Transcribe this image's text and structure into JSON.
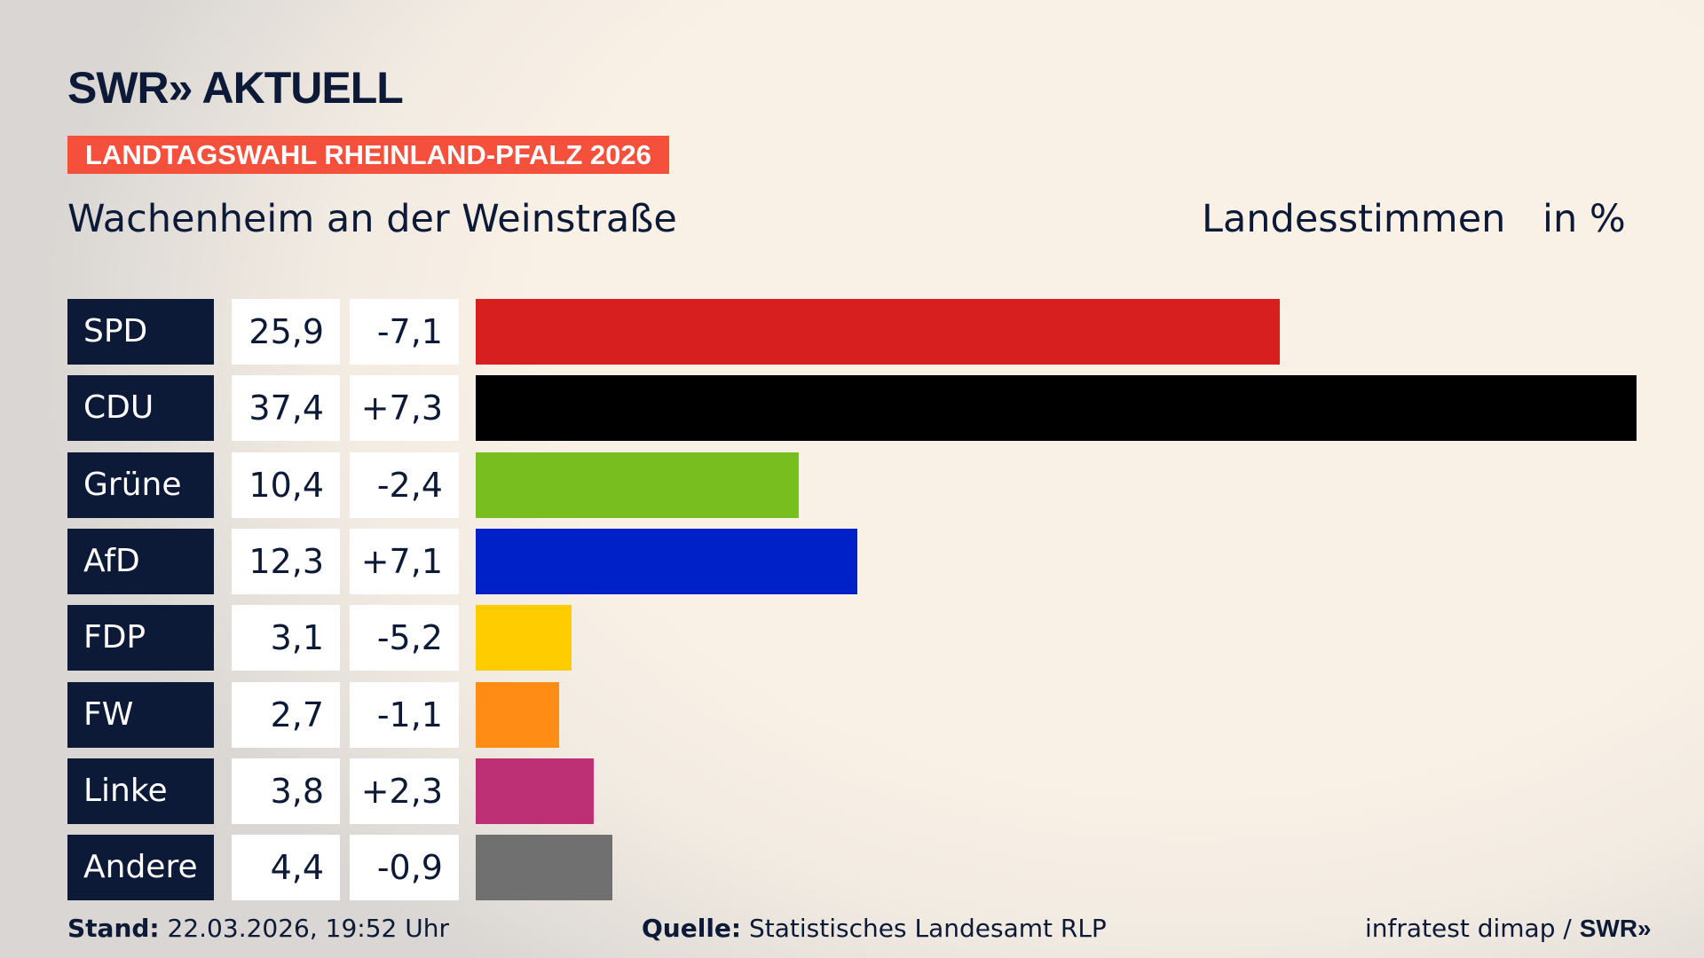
{
  "header": {
    "logo": "SWR» AKTUELL",
    "banner": "LANDTAGSWAHL RHEINLAND-PFALZ 2026",
    "subtitle": "Wachenheim an der Weinstraße",
    "measure": "Landesstimmen",
    "unit": "in %"
  },
  "chart_data": {
    "type": "bar",
    "orientation": "horizontal",
    "categories": [
      "SPD",
      "CDU",
      "Grüne",
      "AfD",
      "FDP",
      "FW",
      "Linke",
      "Andere"
    ],
    "values": [
      25.9,
      37.4,
      10.4,
      12.3,
      3.1,
      2.7,
      3.8,
      4.4
    ],
    "value_labels": [
      "25,9",
      "37,4",
      "10,4",
      "12,3",
      "3,1",
      "2,7",
      "3,8",
      "4,4"
    ],
    "changes": [
      -7.1,
      7.3,
      -2.4,
      7.1,
      -5.2,
      -1.1,
      2.3,
      -0.9
    ],
    "change_labels": [
      "-7,1",
      "+7,3",
      "-2,4",
      "+7,1",
      "-5,2",
      "-1,1",
      "+2,3",
      "-0,9"
    ],
    "colors": [
      "#d81f20",
      "#000000",
      "#78be1e",
      "#0021c8",
      "#ffcc00",
      "#ff8c14",
      "#be3075",
      "#707070"
    ],
    "xlabel": "",
    "ylabel": "",
    "grid": false
  },
  "footer": {
    "stand_label": "Stand:",
    "stand_value": "22.03.2026, 19:52 Uhr",
    "source_label": "Quelle:",
    "source_value": "Statistisches Landesamt RLP",
    "credit": "infratest dimap / ",
    "credit_logo": "SWR»"
  }
}
